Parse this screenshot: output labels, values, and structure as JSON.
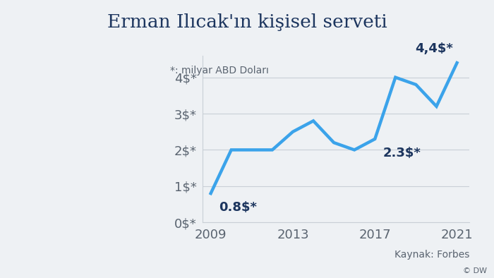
{
  "chart_data": {
    "type": "line",
    "title": "Erman Ilıcak'ın kişisel serveti",
    "subtitle": "*: milyar ABD Doları",
    "source": "Kaynak: Forbes",
    "credit": "© DW",
    "x": [
      2009,
      2010,
      2011,
      2012,
      2013,
      2014,
      2015,
      2016,
      2017,
      2018,
      2019,
      2020,
      2021
    ],
    "values": [
      0.8,
      2.0,
      2.0,
      2.0,
      2.5,
      2.8,
      2.2,
      2.0,
      2.3,
      4.0,
      3.8,
      3.2,
      4.4
    ],
    "value_labels": [
      "0.8$*",
      null,
      null,
      null,
      null,
      null,
      null,
      null,
      "2.3$*",
      null,
      null,
      null,
      "4,4$*"
    ],
    "data_labels": true,
    "color": "#3ba3ea",
    "xlim": [
      2008.6,
      2021.6
    ],
    "xticks": [
      2009,
      2013,
      2017,
      2021
    ],
    "ylim": [
      0,
      4.6
    ],
    "yticks": [
      {
        "value": 0,
        "label": "0$*"
      },
      {
        "value": 1,
        "label": "1$*"
      },
      {
        "value": 2,
        "label": "2$*"
      },
      {
        "value": 3,
        "label": "3$*"
      },
      {
        "value": 4,
        "label": "4$*"
      }
    ],
    "grid": true
  }
}
